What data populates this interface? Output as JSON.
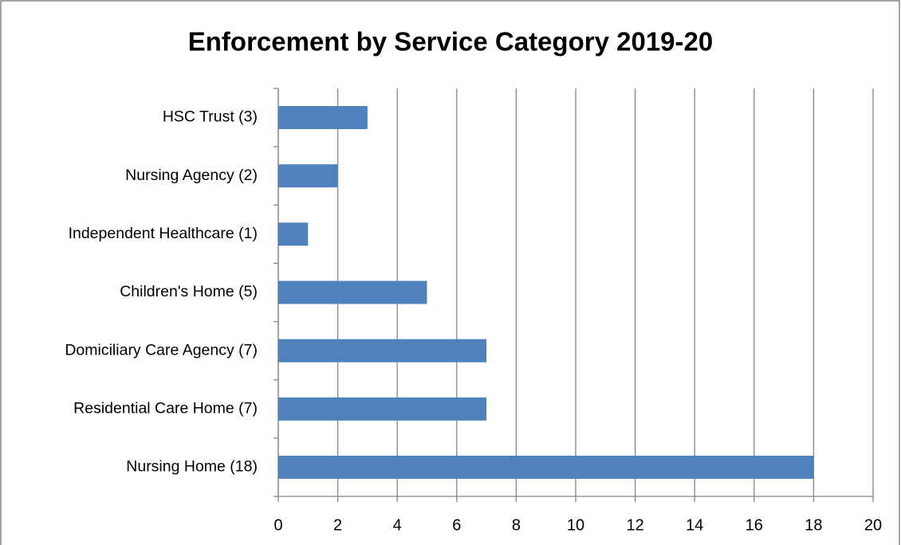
{
  "chart_data": {
    "type": "bar",
    "orientation": "horizontal",
    "title": "Enforcement by Service Category 2019-20",
    "categories": [
      "Nursing Home (18)",
      "Residential Care Home (7)",
      "Domiciliary Care Agency (7)",
      "Children's Home (5)",
      "Independent Healthcare (1)",
      "Nursing Agency (2)",
      "HSC Trust (3)"
    ],
    "values": [
      18,
      7,
      7,
      5,
      1,
      2,
      3
    ],
    "color": "#4f81bd",
    "xlim": [
      0,
      20
    ],
    "xticks": [
      0,
      2,
      4,
      6,
      8,
      10,
      12,
      14,
      16,
      18,
      20
    ],
    "grid": true
  }
}
